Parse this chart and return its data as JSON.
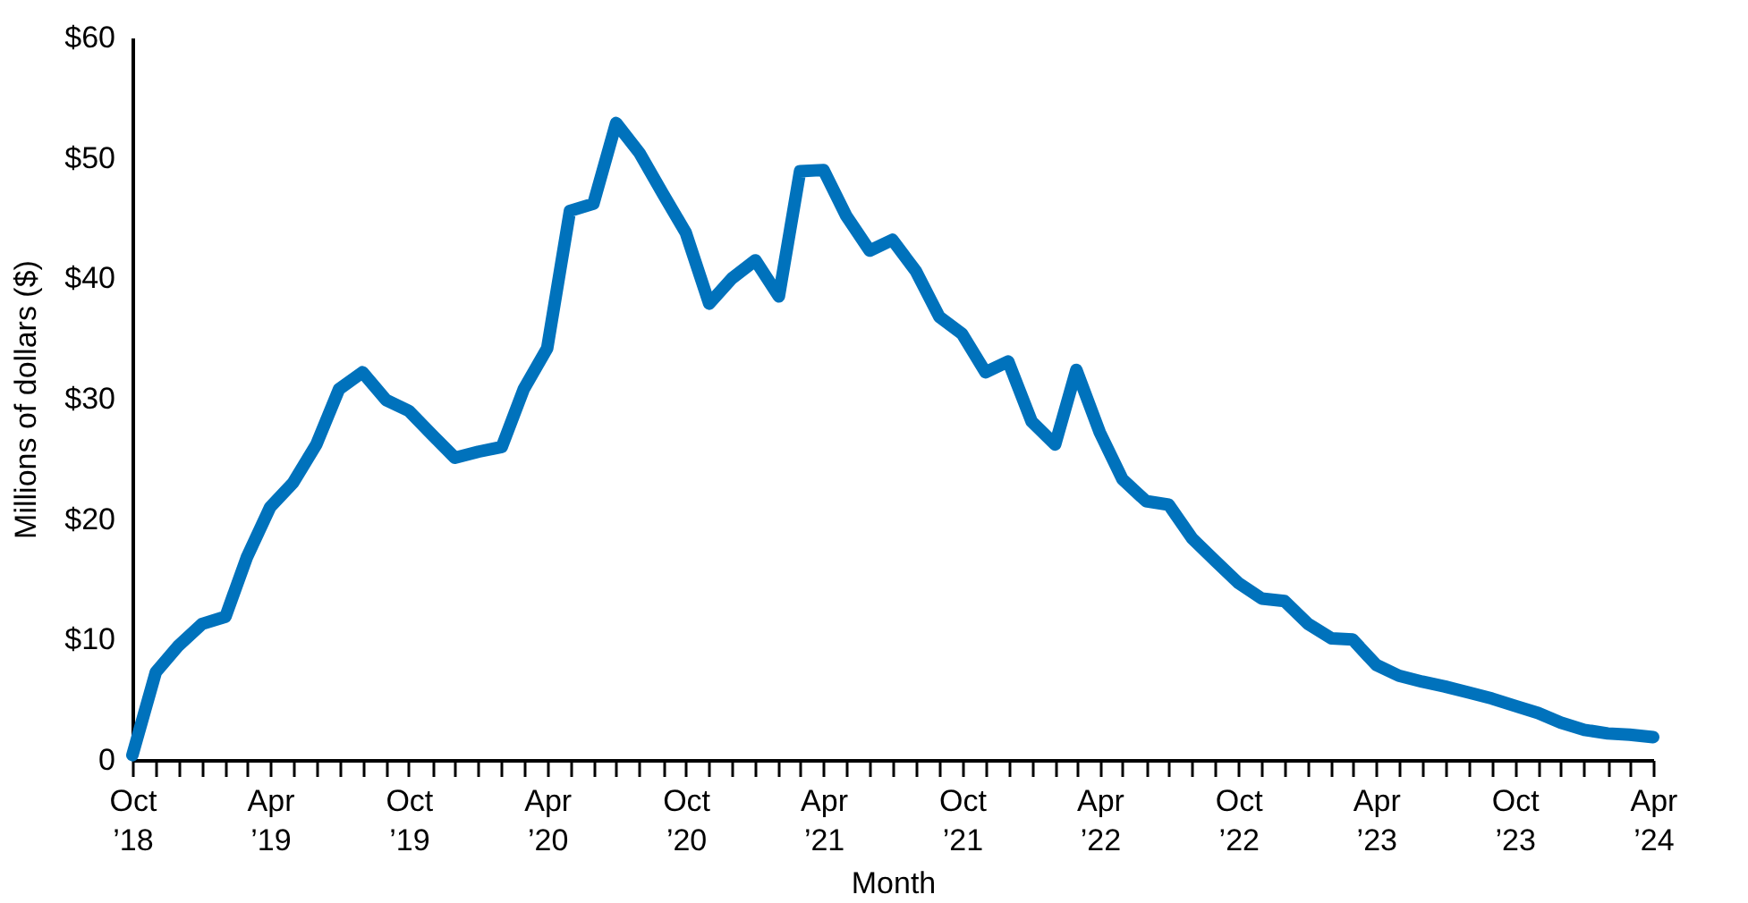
{
  "chart_data": {
    "type": "line",
    "xlabel": "Month",
    "ylabel": "Millions of dollars ($)",
    "x": [
      "2018-10",
      "2018-11",
      "2018-12",
      "2019-01",
      "2019-02",
      "2019-03",
      "2019-04",
      "2019-05",
      "2019-06",
      "2019-07",
      "2019-08",
      "2019-09",
      "2019-10",
      "2019-11",
      "2019-12",
      "2020-01",
      "2020-02",
      "2020-03",
      "2020-04",
      "2020-05",
      "2020-06",
      "2020-07",
      "2020-08",
      "2020-09",
      "2020-10",
      "2020-11",
      "2020-12",
      "2021-01",
      "2021-02",
      "2021-03",
      "2021-04",
      "2021-05",
      "2021-06",
      "2021-07",
      "2021-08",
      "2021-09",
      "2021-10",
      "2021-11",
      "2021-12",
      "2022-01",
      "2022-02",
      "2022-03",
      "2022-04",
      "2022-05",
      "2022-06",
      "2022-07",
      "2022-08",
      "2022-09",
      "2022-10",
      "2022-11",
      "2022-12",
      "2023-01",
      "2023-02",
      "2023-03",
      "2023-04",
      "2023-05",
      "2023-06",
      "2023-07",
      "2023-08",
      "2023-09",
      "2023-10",
      "2023-11",
      "2023-12",
      "2024-01",
      "2024-02",
      "2024-03",
      "2024-04"
    ],
    "series": [
      {
        "color": "#0072bc",
        "values": [
          0.4,
          7.3,
          9.5,
          11.3,
          11.9,
          16.8,
          21,
          23,
          26.2,
          30.8,
          32.2,
          29.9,
          29,
          27,
          25.1,
          25.6,
          26,
          30.8,
          34.2,
          45.6,
          46.2,
          52.9,
          50.4,
          47,
          43.8,
          37.9,
          40,
          41.5,
          38.5,
          48.9,
          49,
          45.2,
          42.3,
          43.2,
          40.6,
          36.8,
          35.4,
          32.2,
          33.1,
          28.1,
          26.2,
          32.4,
          27.2,
          23.3,
          21.5,
          21.2,
          18.4,
          16.5,
          14.7,
          13.4,
          13.2,
          11.3,
          10.1,
          10,
          7.9,
          7,
          6.5,
          6.1,
          5.6,
          5.1,
          4.5,
          3.9,
          3.1,
          2.5,
          2.2,
          2.1,
          1.9
        ]
      }
    ],
    "xlim": [
      "2018-10",
      "2024-04"
    ],
    "xticks": [
      {
        "value": "2018-10",
        "label": "Oct ’18"
      },
      {
        "value": "2018-11",
        "label": null
      },
      {
        "value": "2018-12",
        "label": null
      },
      {
        "value": "2019-01",
        "label": null
      },
      {
        "value": "2019-02",
        "label": null
      },
      {
        "value": "2019-03",
        "label": null
      },
      {
        "value": "2019-04",
        "label": "Apr ’19"
      },
      {
        "value": "2019-05",
        "label": null
      },
      {
        "value": "2019-06",
        "label": null
      },
      {
        "value": "2019-07",
        "label": null
      },
      {
        "value": "2019-08",
        "label": null
      },
      {
        "value": "2019-09",
        "label": null
      },
      {
        "value": "2019-10",
        "label": "Oct ’19"
      },
      {
        "value": "2019-11",
        "label": null
      },
      {
        "value": "2019-12",
        "label": null
      },
      {
        "value": "2020-01",
        "label": null
      },
      {
        "value": "2020-02",
        "label": null
      },
      {
        "value": "2020-03",
        "label": null
      },
      {
        "value": "2020-04",
        "label": "Apr ’20"
      },
      {
        "value": "2020-05",
        "label": null
      },
      {
        "value": "2020-06",
        "label": null
      },
      {
        "value": "2020-07",
        "label": null
      },
      {
        "value": "2020-08",
        "label": null
      },
      {
        "value": "2020-09",
        "label": null
      },
      {
        "value": "2020-10",
        "label": "Oct ’20"
      },
      {
        "value": "2020-11",
        "label": null
      },
      {
        "value": "2020-12",
        "label": null
      },
      {
        "value": "2021-01",
        "label": null
      },
      {
        "value": "2021-02",
        "label": null
      },
      {
        "value": "2021-03",
        "label": null
      },
      {
        "value": "2021-04",
        "label": "Apr ’21"
      },
      {
        "value": "2021-05",
        "label": null
      },
      {
        "value": "2021-06",
        "label": null
      },
      {
        "value": "2021-07",
        "label": null
      },
      {
        "value": "2021-08",
        "label": null
      },
      {
        "value": "2021-09",
        "label": null
      },
      {
        "value": "2021-10",
        "label": "Oct ’21"
      },
      {
        "value": "2021-11",
        "label": null
      },
      {
        "value": "2021-12",
        "label": null
      },
      {
        "value": "2022-01",
        "label": null
      },
      {
        "value": "2022-02",
        "label": null
      },
      {
        "value": "2022-03",
        "label": null
      },
      {
        "value": "2022-04",
        "label": "Apr ’22"
      },
      {
        "value": "2022-05",
        "label": null
      },
      {
        "value": "2022-06",
        "label": null
      },
      {
        "value": "2022-07",
        "label": null
      },
      {
        "value": "2022-08",
        "label": null
      },
      {
        "value": "2022-09",
        "label": null
      },
      {
        "value": "2022-10",
        "label": "Oct ’22"
      },
      {
        "value": "2022-11",
        "label": null
      },
      {
        "value": "2022-12",
        "label": null
      },
      {
        "value": "2023-01",
        "label": null
      },
      {
        "value": "2023-02",
        "label": null
      },
      {
        "value": "2023-03",
        "label": null
      },
      {
        "value": "2023-04",
        "label": "Apr ’23"
      },
      {
        "value": "2023-05",
        "label": null
      },
      {
        "value": "2023-06",
        "label": null
      },
      {
        "value": "2023-07",
        "label": null
      },
      {
        "value": "2023-08",
        "label": null
      },
      {
        "value": "2023-09",
        "label": null
      },
      {
        "value": "2023-10",
        "label": "Oct ’23"
      },
      {
        "value": "2023-11",
        "label": null
      },
      {
        "value": "2023-12",
        "label": null
      },
      {
        "value": "2024-01",
        "label": null
      },
      {
        "value": "2024-02",
        "label": null
      },
      {
        "value": "2024-03",
        "label": null
      },
      {
        "value": "2024-04",
        "label": "Apr ’24"
      }
    ],
    "ylim": [
      0,
      60
    ],
    "yticks": [
      {
        "value": 0,
        "label": "0"
      },
      {
        "value": 10,
        "label": "$10"
      },
      {
        "value": 20,
        "label": "$20"
      },
      {
        "value": 30,
        "label": "$30"
      },
      {
        "value": 40,
        "label": "$40"
      },
      {
        "value": 50,
        "label": "$50"
      },
      {
        "value": 60,
        "label": "$60"
      }
    ],
    "grid": false,
    "marker": "none",
    "line_style": "solid"
  }
}
